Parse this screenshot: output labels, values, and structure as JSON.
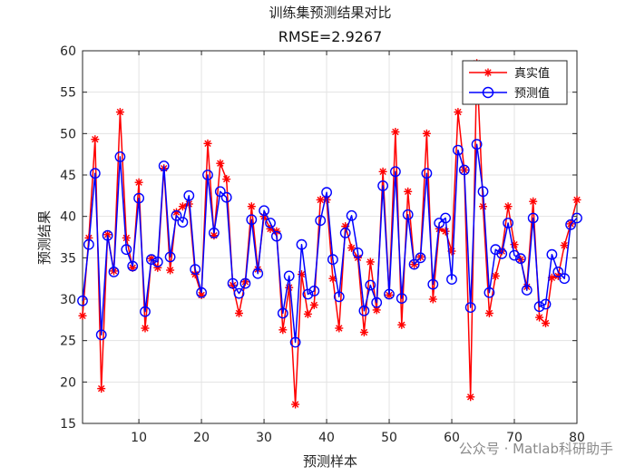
{
  "chart_data": {
    "type": "line",
    "title": "训练集预测结果对比",
    "subtitle": "RMSE=2.9267",
    "xlabel": "预测样本",
    "ylabel": "预测结果",
    "xlim": [
      1,
      80
    ],
    "ylim": [
      15,
      60
    ],
    "xticks": [
      10,
      20,
      30,
      40,
      50,
      60,
      70,
      80
    ],
    "yticks": [
      15,
      20,
      25,
      30,
      35,
      40,
      45,
      50,
      55,
      60
    ],
    "grid": true,
    "legend_position": "top-right",
    "series": [
      {
        "name": "真实值",
        "color": "#ff0000",
        "marker": "asterisk",
        "x": [
          1,
          2,
          3,
          4,
          5,
          6,
          7,
          8,
          9,
          10,
          11,
          12,
          13,
          14,
          15,
          16,
          17,
          18,
          19,
          20,
          21,
          22,
          23,
          24,
          25,
          26,
          27,
          28,
          29,
          30,
          31,
          32,
          33,
          34,
          35,
          36,
          37,
          38,
          39,
          40,
          41,
          42,
          43,
          44,
          45,
          46,
          47,
          48,
          49,
          50,
          51,
          52,
          53,
          54,
          55,
          56,
          57,
          58,
          59,
          60,
          61,
          62,
          63,
          64,
          65,
          66,
          67,
          68,
          69,
          70,
          71,
          72,
          73,
          74,
          75,
          76,
          77,
          78,
          79,
          80
        ],
        "values": [
          28.0,
          37.4,
          49.3,
          19.2,
          37.8,
          33.4,
          52.6,
          37.4,
          33.8,
          44.1,
          26.5,
          34.9,
          33.8,
          45.8,
          33.5,
          40.5,
          41.2,
          41.5,
          33.0,
          30.5,
          48.8,
          37.7,
          46.4,
          44.5,
          31.7,
          28.3,
          32.1,
          41.2,
          33.6,
          40.0,
          38.5,
          38.2,
          26.3,
          31.4,
          17.3,
          33.0,
          28.2,
          29.3,
          42.0,
          42.0,
          32.5,
          26.5,
          38.8,
          36.2,
          35.0,
          26.0,
          34.5,
          28.7,
          45.4,
          30.5,
          50.2,
          26.9,
          43.0,
          34.2,
          35.1,
          50.0,
          30.0,
          38.5,
          38.2,
          35.8,
          52.6,
          45.6,
          18.2,
          58.5,
          41.2,
          28.3,
          32.8,
          35.8,
          41.2,
          36.6,
          34.8,
          31.5,
          41.8,
          27.8,
          27.1,
          32.6,
          32.8,
          36.5,
          39.1,
          42.0
        ]
      },
      {
        "name": "预测值",
        "color": "#0000ff",
        "marker": "circle",
        "x": [
          1,
          2,
          3,
          4,
          5,
          6,
          7,
          8,
          9,
          10,
          11,
          12,
          13,
          14,
          15,
          16,
          17,
          18,
          19,
          20,
          21,
          22,
          23,
          24,
          25,
          26,
          27,
          28,
          29,
          30,
          31,
          32,
          33,
          34,
          35,
          36,
          37,
          38,
          39,
          40,
          41,
          42,
          43,
          44,
          45,
          46,
          47,
          48,
          49,
          50,
          51,
          52,
          53,
          54,
          55,
          56,
          57,
          58,
          59,
          60,
          61,
          62,
          63,
          64,
          65,
          66,
          67,
          68,
          69,
          70,
          71,
          72,
          73,
          74,
          75,
          76,
          77,
          78,
          79,
          80
        ],
        "values": [
          29.8,
          36.6,
          45.2,
          25.7,
          37.7,
          33.3,
          47.2,
          36.0,
          34.0,
          42.2,
          28.5,
          34.8,
          34.5,
          46.1,
          35.1,
          40.1,
          39.3,
          42.5,
          33.6,
          30.8,
          45.0,
          38.0,
          43.0,
          42.3,
          31.9,
          30.7,
          31.9,
          39.6,
          33.1,
          40.7,
          39.2,
          37.6,
          28.3,
          32.8,
          24.8,
          36.6,
          30.6,
          31.0,
          39.5,
          42.9,
          34.8,
          30.3,
          38.0,
          40.1,
          35.6,
          28.6,
          31.7,
          29.6,
          43.7,
          30.6,
          45.4,
          30.1,
          40.2,
          34.2,
          35.0,
          45.2,
          31.8,
          39.2,
          39.8,
          32.4,
          48.0,
          45.6,
          29.0,
          48.7,
          43.0,
          30.8,
          36.0,
          35.5,
          39.2,
          35.3,
          34.9,
          31.1,
          39.8,
          29.1,
          29.4,
          35.4,
          33.3,
          32.5,
          39.0,
          39.8
        ]
      }
    ]
  },
  "watermark": "公众号 · Matlab科研助手"
}
